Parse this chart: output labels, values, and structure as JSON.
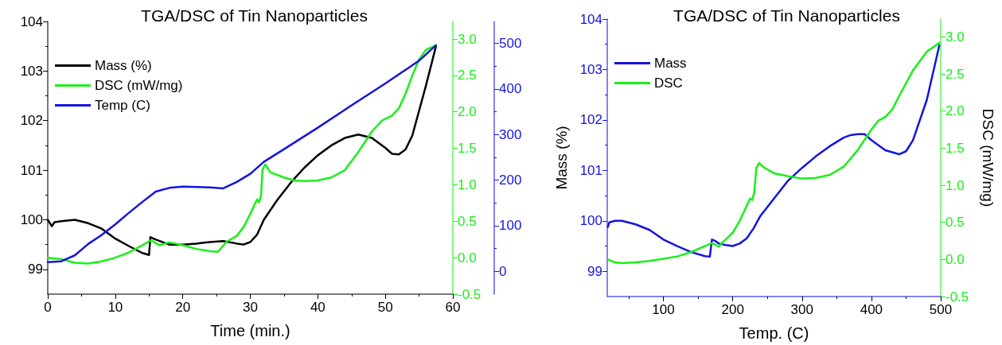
{
  "chart_data": [
    {
      "type": "line",
      "title": "TGA/DSC of Tin Nanoparticles",
      "xlabel": "Time (min.)",
      "xlim": [
        0,
        60
      ],
      "xticks": [
        0,
        10,
        20,
        30,
        40,
        50,
        60
      ],
      "ylim": [
        98.5,
        104
      ],
      "yticks": [
        99,
        100,
        101,
        102,
        103,
        104
      ],
      "y2lim": [
        -0.5,
        3.24
      ],
      "y2ticks": [
        {
          "value": -0.5,
          "label": "-0.5"
        },
        {
          "value": 0,
          "label": "0.0"
        },
        {
          "value": 0.5,
          "label": "0.5"
        },
        {
          "value": 1,
          "label": "1.0"
        },
        {
          "value": 1.5,
          "label": "1.5"
        },
        {
          "value": 2,
          "label": "2.0"
        },
        {
          "value": 2.5,
          "label": "2.5"
        },
        {
          "value": 3,
          "label": "3.0"
        }
      ],
      "y3lim": [
        -50,
        548
      ],
      "y3ticks": [
        0,
        100,
        200,
        300,
        400,
        500
      ],
      "grid": false,
      "legend": "top left",
      "series": [
        {
          "name": "Mass (%)",
          "color": "#000000",
          "x": [
            0,
            0.6,
            1,
            2,
            4,
            6,
            8,
            10,
            12,
            14,
            15,
            15.2,
            16,
            18,
            20,
            22,
            24,
            26,
            28,
            29,
            30,
            31,
            32,
            34,
            36,
            38,
            40,
            42,
            44,
            46,
            48,
            50,
            51,
            52,
            53,
            54,
            55,
            56,
            57.5
          ],
          "values": [
            100.0,
            99.87,
            99.95,
            99.97,
            100.0,
            99.93,
            99.82,
            99.62,
            99.47,
            99.33,
            99.29,
            99.65,
            99.6,
            99.5,
            99.5,
            99.52,
            99.55,
            99.57,
            99.52,
            99.5,
            99.55,
            99.7,
            100.0,
            100.4,
            100.75,
            101.05,
            101.3,
            101.5,
            101.65,
            101.72,
            101.65,
            101.45,
            101.33,
            101.32,
            101.42,
            101.7,
            102.2,
            102.7,
            103.5
          ]
        },
        {
          "name": "DSC (mW/mg)",
          "color": "#19f019",
          "axis": "y2",
          "x": [
            0,
            2,
            4,
            6,
            8,
            10,
            12,
            14,
            15.3,
            16.5,
            18,
            20,
            22,
            24,
            25.2,
            26.5,
            28,
            29,
            30,
            31,
            31.3,
            31.6,
            31.8,
            32.2,
            33,
            35,
            36.5,
            38,
            40,
            42,
            44,
            46,
            48,
            49.5,
            51,
            52,
            53,
            54,
            55,
            56,
            57.5
          ],
          "values": [
            0.0,
            -0.02,
            -0.07,
            -0.08,
            -0.05,
            0.0,
            0.07,
            0.17,
            0.24,
            0.17,
            0.21,
            0.17,
            0.12,
            0.09,
            0.08,
            0.22,
            0.3,
            0.42,
            0.6,
            0.8,
            0.76,
            0.85,
            1.2,
            1.28,
            1.17,
            1.1,
            1.06,
            1.05,
            1.06,
            1.1,
            1.2,
            1.45,
            1.73,
            1.88,
            1.95,
            2.05,
            2.25,
            2.5,
            2.72,
            2.85,
            2.91
          ]
        },
        {
          "name": "Temp (C)",
          "color": "#1414e0",
          "axis": "y3",
          "x": [
            0,
            2,
            4,
            6,
            8,
            10,
            12,
            14,
            16,
            18,
            20,
            24,
            26,
            28,
            30,
            32,
            35,
            40,
            45,
            50,
            55,
            57.5
          ],
          "values": [
            20,
            22,
            35,
            60,
            80,
            103,
            128,
            152,
            175,
            183,
            186,
            184,
            182,
            196,
            214,
            240,
            268,
            315,
            364,
            412,
            462,
            496
          ]
        }
      ]
    },
    {
      "type": "line",
      "title": "TGA/DSC of Tin Nanoparticles",
      "xlabel": "Temp. (C)",
      "ylabel": "Mass (%)",
      "y2label": "DSC (mW/mg)",
      "xlim": [
        19,
        500
      ],
      "xticks": [
        100,
        200,
        300,
        400,
        500
      ],
      "ylim": [
        98.5,
        104
      ],
      "yticks": [
        99,
        100,
        101,
        102,
        103,
        104
      ],
      "y2lim": [
        -0.5,
        3.24
      ],
      "y2ticks": [
        {
          "value": -0.5,
          "label": "-0.5"
        },
        {
          "value": 0,
          "label": "0.0"
        },
        {
          "value": 0.5,
          "label": "0.5"
        },
        {
          "value": 1,
          "label": "1.0"
        },
        {
          "value": 1.5,
          "label": "1.5"
        },
        {
          "value": 2,
          "label": "2.0"
        },
        {
          "value": 2.5,
          "label": "2.5"
        },
        {
          "value": 3,
          "label": "3.0"
        }
      ],
      "grid": false,
      "legend": "top left",
      "series": [
        {
          "name": "Mass",
          "color": "#1414e0",
          "x": [
            20,
            22,
            30,
            40,
            60,
            80,
            100,
            120,
            140,
            160,
            167,
            170,
            175,
            180,
            190,
            200,
            210,
            220,
            230,
            240,
            260,
            280,
            300,
            320,
            340,
            360,
            370,
            380,
            390,
            400,
            420,
            440,
            450,
            460,
            480,
            498
          ],
          "values": [
            99.88,
            99.97,
            100.0,
            100.0,
            99.93,
            99.82,
            99.63,
            99.5,
            99.38,
            99.3,
            99.29,
            99.63,
            99.6,
            99.55,
            99.52,
            99.5,
            99.55,
            99.65,
            99.85,
            100.1,
            100.45,
            100.8,
            101.05,
            101.28,
            101.48,
            101.65,
            101.7,
            101.72,
            101.72,
            101.6,
            101.4,
            101.32,
            101.38,
            101.6,
            102.4,
            103.48
          ]
        },
        {
          "name": "DSC",
          "color": "#19f019",
          "axis": "y2",
          "x": [
            20,
            30,
            40,
            60,
            80,
            100,
            120,
            140,
            160,
            170,
            175,
            180,
            185,
            190,
            200,
            210,
            220,
            225,
            228,
            231,
            234,
            238,
            245,
            260,
            280,
            300,
            320,
            340,
            360,
            380,
            400,
            410,
            420,
            430,
            440,
            460,
            480,
            498
          ],
          "values": [
            0.0,
            -0.04,
            -0.05,
            -0.04,
            -0.02,
            0.01,
            0.04,
            0.1,
            0.18,
            0.22,
            0.2,
            0.17,
            0.23,
            0.27,
            0.36,
            0.52,
            0.72,
            0.82,
            0.8,
            0.9,
            1.23,
            1.3,
            1.24,
            1.16,
            1.12,
            1.09,
            1.1,
            1.14,
            1.25,
            1.47,
            1.75,
            1.87,
            1.92,
            2.02,
            2.2,
            2.55,
            2.8,
            2.92
          ]
        }
      ]
    }
  ]
}
